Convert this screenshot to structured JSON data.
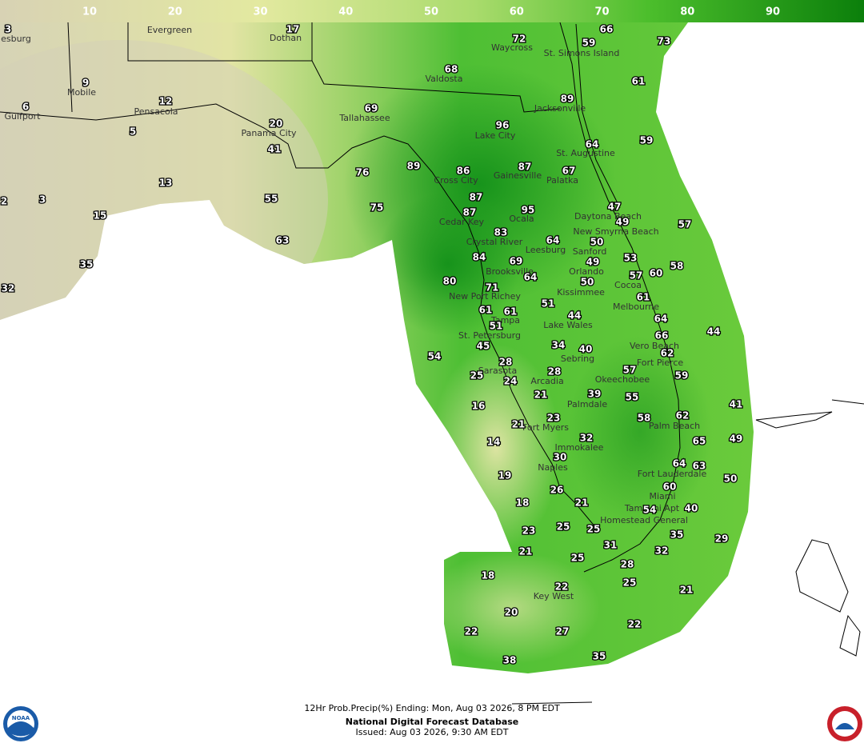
{
  "color_scale": {
    "ticks": [
      10,
      20,
      30,
      40,
      50,
      60,
      70,
      80,
      90
    ]
  },
  "cities": [
    "esburg",
    "Evergreen",
    "Dothan",
    "Waycross",
    "St. Simons Island",
    "Valdosta",
    "Mobile",
    "Pensacola",
    "Gulfport",
    "Tallahassee",
    "Jacksonville",
    "Lake City",
    "Panama City",
    "St. Augustine",
    "Gainesville",
    "Cross City",
    "Palatka",
    "Daytona Beach",
    "Cedar Key",
    "Ocala",
    "New Smyrna Beach",
    "Crystal River",
    "Leesburg",
    "Sanford",
    "Orlando",
    "Brooksville",
    "Cocoa",
    "Kissimmee",
    "New Port Richey",
    "Melbourne",
    "Tampa",
    "Lake Wales",
    "St. Petersburg",
    "Vero Beach",
    "Sebring",
    "Fort Pierce",
    "Sarasota",
    "Okeechobee",
    "Arcadia",
    "Palmdale",
    "Palm Beach",
    "Fort Myers",
    "Immokalee",
    "Naples",
    "Fort Lauderdale",
    "Miami",
    "Tamiami Apt",
    "Homestead General",
    "Key West"
  ],
  "values": [
    3,
    17,
    72,
    66,
    59,
    73,
    68,
    9,
    12,
    6,
    89,
    61,
    69,
    20,
    96,
    5,
    41,
    64,
    59,
    76,
    89,
    86,
    87,
    67,
    13,
    55,
    87,
    3,
    2,
    75,
    95,
    47,
    87,
    49,
    57,
    15,
    83,
    64,
    50,
    63,
    84,
    69,
    49,
    53,
    58,
    60,
    35,
    80,
    64,
    57,
    50,
    32,
    71,
    61,
    51,
    61,
    61,
    44,
    51,
    64,
    44,
    66,
    45,
    34,
    40,
    62,
    54,
    28,
    28,
    57,
    59,
    25,
    24,
    39,
    21,
    55,
    16,
    58,
    62,
    41,
    23,
    21,
    32,
    65,
    49,
    14,
    30,
    64,
    63,
    19,
    50,
    26,
    60,
    18,
    21,
    40,
    54,
    25,
    23,
    25,
    35,
    29,
    31,
    32,
    21,
    25,
    28,
    18,
    25,
    22,
    21,
    20,
    22,
    27,
    22,
    35,
    38
  ],
  "footer": {
    "product": "12Hr Prob.Precip(%) Ending: Mon, Aug 03 2026, 8 PM EDT",
    "database": "National Digital Forecast Database",
    "issued": "Issued: Aug 03 2026, 9:30 AM EDT"
  },
  "logo": "NOAA"
}
